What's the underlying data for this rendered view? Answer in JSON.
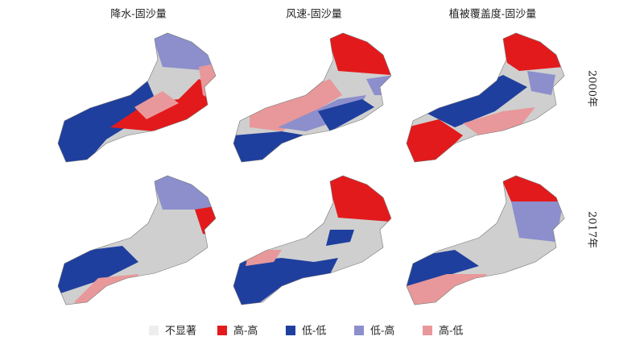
{
  "columns": [
    "降水-固沙量",
    "风速-固沙量",
    "植被覆盖度-固沙量"
  ],
  "rows": [
    "2000年",
    "2017年"
  ],
  "legend": [
    {
      "label": "不显著",
      "color": "#eeeeee"
    },
    {
      "label": "高-高",
      "color": "#e31a1c"
    },
    {
      "label": "低-低",
      "color": "#1f3f9e"
    },
    {
      "label": "低-高",
      "color": "#8c8fcc"
    },
    {
      "label": "高-低",
      "color": "#e8989a"
    }
  ]
}
